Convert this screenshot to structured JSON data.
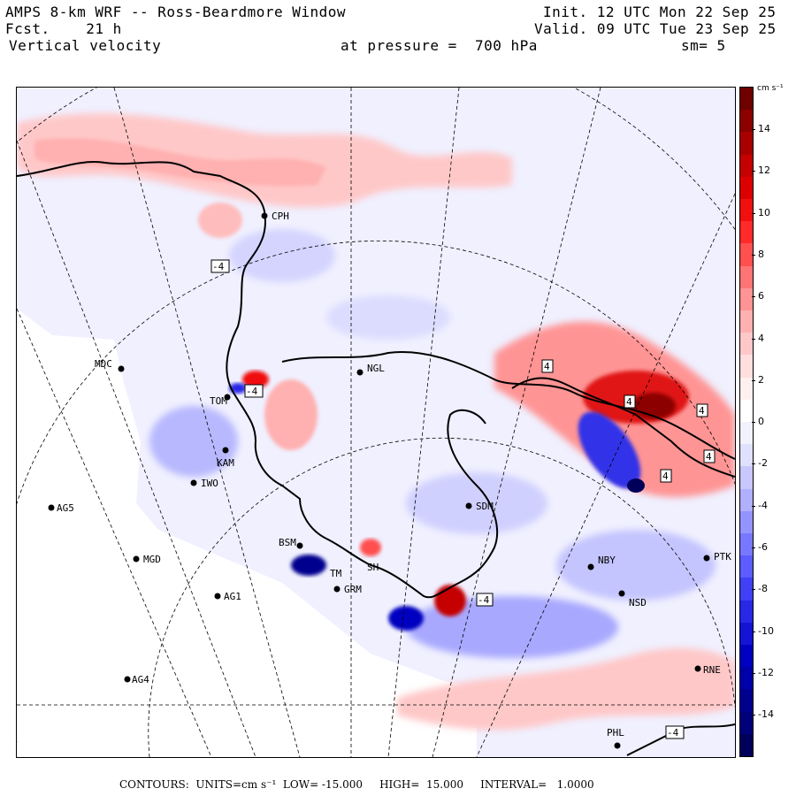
{
  "header": {
    "title": "AMPS 8-km WRF -- Ross-Beardmore Window",
    "forecast": "Fcst.    21 h",
    "field": "Vertical velocity",
    "pressure": "at pressure =  700 hPa",
    "init": "Init. 12 UTC Mon 22 Sep 25",
    "valid": "Valid. 09 UTC Tue 23 Sep 25",
    "smoothing": "sm= 5"
  },
  "colorbar": {
    "units_label": "cm s⁻¹",
    "tick_labels": [
      "14",
      "12",
      "10",
      "8",
      "6",
      "4",
      "2",
      "0",
      "-2",
      "-4",
      "-6",
      "-8",
      "-10",
      "-12",
      "-14"
    ],
    "colors_top_to_bottom": [
      "#6e0000",
      "#8c0000",
      "#a80000",
      "#c40000",
      "#dc0000",
      "#f01010",
      "#ff2a2a",
      "#ff5050",
      "#ff7474",
      "#ff9494",
      "#ffb0b0",
      "#ffc8c8",
      "#ffdede",
      "#fff0f0",
      "#ffffff",
      "#f2f2ff",
      "#e0e0ff",
      "#c8c8ff",
      "#b0b0ff",
      "#9494ff",
      "#7878ff",
      "#5c5cff",
      "#4040f4",
      "#2828e6",
      "#1414d4",
      "#0000c0",
      "#0000a8",
      "#00008e",
      "#000078",
      "#00005a"
    ]
  },
  "stations": [
    {
      "id": "CPH",
      "label": "CPH"
    },
    {
      "id": "MDC",
      "label": "MDC"
    },
    {
      "id": "NGL",
      "label": "NGL"
    },
    {
      "id": "TOM",
      "label": "TOM"
    },
    {
      "id": "KAM",
      "label": "KAM"
    },
    {
      "id": "IWO",
      "label": "IWO"
    },
    {
      "id": "AG5",
      "label": "AG5"
    },
    {
      "id": "SDM",
      "label": "SDM"
    },
    {
      "id": "BSM",
      "label": "BSM"
    },
    {
      "id": "MGD",
      "label": "MGD"
    },
    {
      "id": "TM",
      "label": "TM"
    },
    {
      "id": "SH",
      "label": "SH"
    },
    {
      "id": "GRM",
      "label": "GRM"
    },
    {
      "id": "AG1",
      "label": "AG1"
    },
    {
      "id": "NBY",
      "label": "NBY"
    },
    {
      "id": "PTK",
      "label": "PTK"
    },
    {
      "id": "NSD",
      "label": "NSD"
    },
    {
      "id": "RNE",
      "label": "RNE"
    },
    {
      "id": "AG4",
      "label": "AG4"
    },
    {
      "id": "PHL",
      "label": "PHL"
    }
  ],
  "contour_labels": [
    "4",
    "4",
    "-4",
    "-4",
    "4",
    "4",
    "4",
    "-4",
    "-4"
  ],
  "footer": {
    "contours": "CONTOURS:",
    "units": "UNITS=cm s⁻¹",
    "low": "LOW= -15.000",
    "high": "HIGH=  15.000",
    "interval": "INTERVAL=   1.0000"
  }
}
